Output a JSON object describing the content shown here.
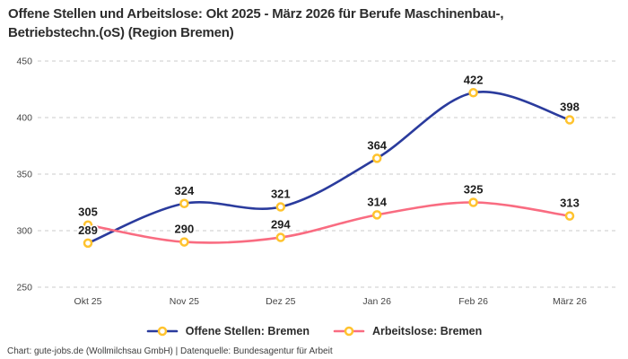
{
  "title": {
    "line1": "Offene Stellen und Arbeitslose: Okt 2025 - März 2026 für Berufe Maschinenbau-,",
    "line2": "Betriebstechn.(oS) (Region Bremen)"
  },
  "footer": {
    "text": "Chart: gute-jobs.de (Wollmilchsau GmbH) | Datenquelle: Bundesagentur für Arbeit"
  },
  "legend": {
    "items": [
      {
        "label": "Offene Stellen: Bremen"
      },
      {
        "label": "Arbeitslose: Bremen"
      }
    ]
  },
  "colors": {
    "offene-stellen-line": "#2a3b9d",
    "arbeitslose-line": "#f96c81",
    "marker-ring": "#ffc32e",
    "grid-line": "#cbcbcb",
    "title-text": "#2d2d2d",
    "point-label-text": "#1e1e1e",
    "axis-text": "#454545",
    "legend-text": "#2b2b2b",
    "footer-text": "#3c3c3c",
    "background": "#ffffff"
  },
  "chart_data": {
    "type": "line",
    "title": "Offene Stellen und Arbeitslose: Okt 2025 - März 2026 für Berufe Maschinenbau-, Betriebstechn.(oS) (Region Bremen)",
    "categories": [
      "Okt 25",
      "Nov 25",
      "Dez 25",
      "Jan 26",
      "Feb 26",
      "März 26"
    ],
    "series": [
      {
        "id": "offene-stellen",
        "name": "Offene Stellen: Bremen",
        "values": [
          289,
          324,
          321,
          364,
          422,
          398
        ],
        "color": "#2a3b9d"
      },
      {
        "id": "arbeitslose",
        "name": "Arbeitslose: Bremen",
        "values": [
          305,
          290,
          294,
          314,
          325,
          313
        ],
        "color": "#f96c81"
      }
    ],
    "ylim": [
      250,
      450
    ],
    "yticks": [
      450,
      400,
      350,
      300,
      250
    ],
    "grid": "horizontal-dashed",
    "legend_position": "bottom",
    "marker_style": "gold-ring-white-fill",
    "line_style": "smooth",
    "point_labels": "above-markers"
  }
}
